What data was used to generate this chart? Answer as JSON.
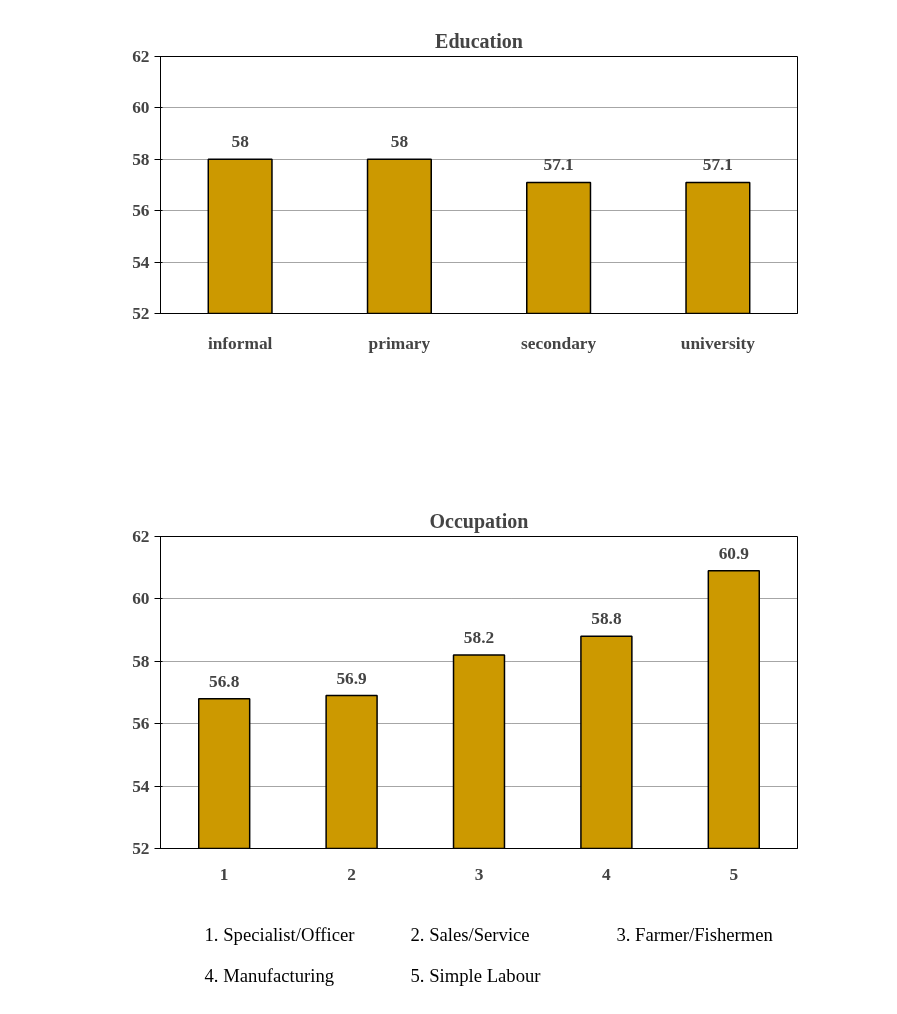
{
  "chart_data": [
    {
      "type": "bar",
      "title": "Education",
      "categories": [
        "informal",
        "primary",
        "secondary",
        "university"
      ],
      "values": [
        58,
        58,
        57.1,
        57.1
      ],
      "color": "#cc9900",
      "ylim": [
        52,
        62
      ],
      "yticks": [
        52,
        54,
        56,
        58,
        60,
        62
      ],
      "grid": "y",
      "data_labels": true
    },
    {
      "type": "bar",
      "title": "Occupation",
      "categories": [
        "1",
        "2",
        "3",
        "4",
        "5"
      ],
      "values": [
        56.8,
        56.9,
        58.2,
        58.8,
        60.9
      ],
      "color": "#cc9900",
      "ylim": [
        52,
        62
      ],
      "yticks": [
        52,
        54,
        56,
        58,
        60,
        62
      ],
      "grid": "y",
      "data_labels": true,
      "annotations": [
        "1. Specialist/Officer",
        "2. Sales/Service",
        "3. Farmer/Fishermen",
        "4. Manufacturing",
        "5. Simple Labour"
      ]
    }
  ]
}
